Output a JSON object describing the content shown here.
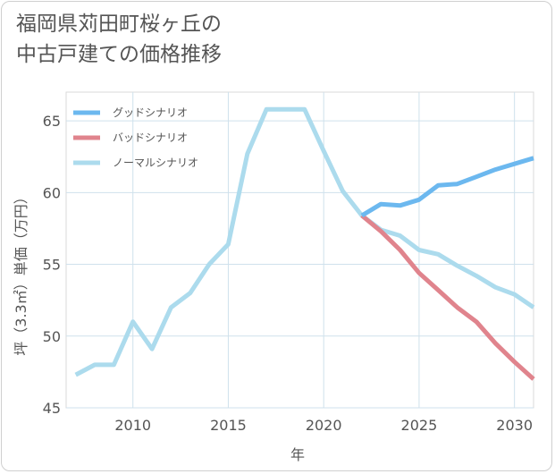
{
  "title_line1": "福岡県苅田町桜ヶ丘の",
  "title_line2": "中古戸建ての価格推移",
  "chart_data": {
    "type": "line",
    "title": "福岡県苅田町桜ヶ丘の中古戸建ての価格推移",
    "xlabel": "年",
    "ylabel": "坪（3.3㎡）単価（万円）",
    "xlim": [
      2006.5,
      2031
    ],
    "ylim": [
      45,
      67
    ],
    "xticks": [
      2010,
      2015,
      2020,
      2025,
      2030
    ],
    "yticks": [
      45,
      50,
      55,
      60,
      65
    ],
    "grid": true,
    "legend_position": "top-left",
    "series": [
      {
        "name": "グッドシナリオ",
        "color": "#6cb8ef",
        "x": [
          2022,
          2023,
          2024,
          2025,
          2026,
          2027,
          2028,
          2029,
          2030,
          2031
        ],
        "y": [
          58.4,
          59.2,
          59.1,
          59.5,
          60.5,
          60.6,
          61.1,
          61.6,
          62.0,
          62.4
        ]
      },
      {
        "name": "バッドシナリオ",
        "color": "#e0848d",
        "x": [
          2022,
          2023,
          2024,
          2025,
          2026,
          2027,
          2028,
          2029,
          2030,
          2031
        ],
        "y": [
          58.4,
          57.3,
          56.0,
          54.4,
          53.2,
          52.0,
          51.0,
          49.5,
          48.2,
          47.0
        ]
      },
      {
        "name": "ノーマルシナリオ",
        "color": "#acdbed",
        "x": [
          2007,
          2008,
          2009,
          2010,
          2011,
          2012,
          2013,
          2014,
          2015,
          2016,
          2017,
          2018,
          2019,
          2020,
          2021,
          2022,
          2023,
          2024,
          2025,
          2026,
          2027,
          2028,
          2029,
          2030,
          2031
        ],
        "y": [
          47.3,
          48.0,
          48.0,
          51.0,
          49.1,
          52.0,
          53.0,
          55.0,
          56.4,
          62.7,
          65.8,
          65.8,
          65.8,
          62.9,
          60.1,
          58.4,
          57.4,
          57.0,
          56.0,
          55.7,
          54.9,
          54.2,
          53.4,
          52.9,
          52.0
        ]
      }
    ]
  }
}
